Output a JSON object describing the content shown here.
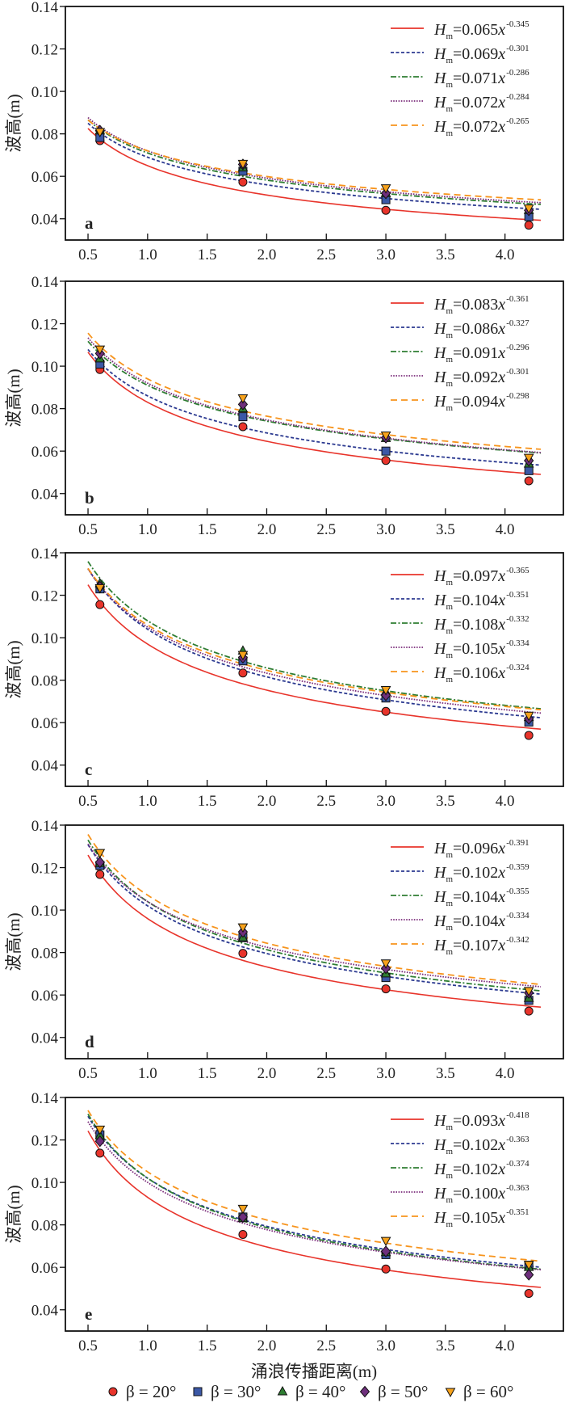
{
  "xlabel": "涌浪传播距离(m)",
  "ylabel": "波高(m)",
  "fit_prefix": "H",
  "fit_subscript": "m",
  "fit_variable": "x",
  "legend": [
    {
      "label": "β = 20°",
      "marker": "circle",
      "color": "#e8342b"
    },
    {
      "label": "β = 30°",
      "marker": "square",
      "color": "#3b58a6"
    },
    {
      "label": "β = 40°",
      "marker": "triangle-up",
      "color": "#2e7d32"
    },
    {
      "label": "β = 50°",
      "marker": "diamond",
      "color": "#6e2f7c"
    },
    {
      "label": "β = 60°",
      "marker": "triangle-down",
      "color": "#f7a21b"
    }
  ],
  "fit_styles": [
    {
      "color": "#e8342b",
      "style": "solid"
    },
    {
      "color": "#2b3990",
      "style": "short-dash"
    },
    {
      "color": "#2e7d32",
      "style": "dash-dot"
    },
    {
      "color": "#7b2d7b",
      "style": "dotted"
    },
    {
      "color": "#f7941d",
      "style": "long-dash"
    }
  ],
  "chart_data": [
    {
      "type": "scatter",
      "panel_label": "a",
      "xlim": [
        0.31,
        4.49
      ],
      "ylim": [
        0.03,
        0.14
      ],
      "xticks": [
        "0.5",
        "1.0",
        "1.5",
        "2.0",
        "2.5",
        "3.0",
        "3.5",
        "4.0"
      ],
      "yticks": [
        "0.04",
        "0.06",
        "0.08",
        "0.10",
        "0.12",
        "0.14"
      ],
      "x": [
        0.6,
        1.8,
        3.0,
        4.2
      ],
      "series": [
        {
          "name": "β = 20°",
          "values": [
            0.0768,
            0.0573,
            0.044,
            0.037
          ]
        },
        {
          "name": "β = 30°",
          "values": [
            0.0783,
            0.0624,
            0.049,
            0.041
          ]
        },
        {
          "name": "β = 40°",
          "values": [
            0.0815,
            0.064,
            0.052,
            0.044
          ]
        },
        {
          "name": "β = 50°",
          "values": [
            0.0815,
            0.0656,
            0.052,
            0.044
          ]
        },
        {
          "name": "β = 60°",
          "values": [
            0.081,
            0.066,
            0.0545,
            0.045
          ]
        }
      ],
      "fits": [
        {
          "coefficient": "0.065",
          "exponent": "-0.345"
        },
        {
          "coefficient": "0.069",
          "exponent": "-0.301"
        },
        {
          "coefficient": "0.071",
          "exponent": "-0.286"
        },
        {
          "coefficient": "0.072",
          "exponent": "-0.284"
        },
        {
          "coefficient": "0.072",
          "exponent": "-0.265"
        }
      ]
    },
    {
      "type": "scatter",
      "panel_label": "b",
      "xlim": [
        0.31,
        4.49
      ],
      "ylim": [
        0.03,
        0.14
      ],
      "xticks": [
        "0.5",
        "1.0",
        "1.5",
        "2.0",
        "2.5",
        "3.0",
        "3.5",
        "4.0"
      ],
      "yticks": [
        "0.04",
        "0.06",
        "0.08",
        "0.10",
        "0.12",
        "0.14"
      ],
      "x": [
        0.6,
        1.8,
        3.0,
        4.2
      ],
      "series": [
        {
          "name": "β = 20°",
          "values": [
            0.0984,
            0.0715,
            0.0556,
            0.046
          ]
        },
        {
          "name": "β = 30°",
          "values": [
            0.101,
            0.0762,
            0.06,
            0.0508
          ]
        },
        {
          "name": "β = 40°",
          "values": [
            0.1035,
            0.08,
            0.066,
            0.054
          ]
        },
        {
          "name": "β = 50°",
          "values": [
            0.106,
            0.082,
            0.0663,
            0.0555
          ]
        },
        {
          "name": "β = 60°",
          "values": [
            0.108,
            0.085,
            0.0675,
            0.057
          ]
        }
      ],
      "fits": [
        {
          "coefficient": "0.083",
          "exponent": "-0.361"
        },
        {
          "coefficient": "0.086",
          "exponent": "-0.327"
        },
        {
          "coefficient": "0.091",
          "exponent": "-0.296"
        },
        {
          "coefficient": "0.092",
          "exponent": "-0.301"
        },
        {
          "coefficient": "0.094",
          "exponent": "-0.298"
        }
      ]
    },
    {
      "type": "scatter",
      "panel_label": "c",
      "xlim": [
        0.31,
        4.49
      ],
      "ylim": [
        0.03,
        0.14
      ],
      "xticks": [
        "0.5",
        "1.0",
        "1.5",
        "2.0",
        "2.5",
        "3.0",
        "3.5",
        "4.0"
      ],
      "yticks": [
        "0.04",
        "0.06",
        "0.08",
        "0.10",
        "0.12",
        "0.14"
      ],
      "x": [
        0.6,
        1.8,
        3.0,
        4.2
      ],
      "series": [
        {
          "name": "β = 20°",
          "values": [
            0.1156,
            0.0834,
            0.0653,
            0.054
          ]
        },
        {
          "name": "β = 30°",
          "values": [
            0.123,
            0.0891,
            0.0716,
            0.0603
          ]
        },
        {
          "name": "β = 40°",
          "values": [
            0.1255,
            0.0938,
            0.0745,
            0.0625
          ]
        },
        {
          "name": "β = 50°",
          "values": [
            0.124,
            0.0906,
            0.0729,
            0.0618
          ]
        },
        {
          "name": "β = 60°",
          "values": [
            0.1235,
            0.092,
            0.0755,
            0.0634
          ]
        }
      ],
      "fits": [
        {
          "coefficient": "0.097",
          "exponent": "-0.365"
        },
        {
          "coefficient": "0.104",
          "exponent": "-0.351"
        },
        {
          "coefficient": "0.108",
          "exponent": "-0.332"
        },
        {
          "coefficient": "0.105",
          "exponent": "-0.334"
        },
        {
          "coefficient": "0.106",
          "exponent": "-0.324"
        }
      ]
    },
    {
      "type": "scatter",
      "panel_label": "d",
      "xlim": [
        0.31,
        4.49
      ],
      "ylim": [
        0.03,
        0.14
      ],
      "xticks": [
        "0.5",
        "1.0",
        "1.5",
        "2.0",
        "2.5",
        "3.0",
        "3.5",
        "4.0"
      ],
      "yticks": [
        "0.04",
        "0.06",
        "0.08",
        "0.10",
        "0.12",
        "0.14"
      ],
      "x": [
        0.6,
        1.8,
        3.0,
        4.2
      ],
      "series": [
        {
          "name": "β = 20°",
          "values": [
            0.1168,
            0.0796,
            0.0629,
            0.0524
          ]
        },
        {
          "name": "β = 30°",
          "values": [
            0.121,
            0.087,
            0.0682,
            0.0575
          ]
        },
        {
          "name": "β = 40°",
          "values": [
            0.122,
            0.087,
            0.07,
            0.0585
          ]
        },
        {
          "name": "β = 50°",
          "values": [
            0.1225,
            0.0897,
            0.0726,
            0.061
          ]
        },
        {
          "name": "β = 60°",
          "values": [
            0.127,
            0.092,
            0.075,
            0.062
          ]
        }
      ],
      "fits": [
        {
          "coefficient": "0.096",
          "exponent": "-0.391"
        },
        {
          "coefficient": "0.102",
          "exponent": "-0.359"
        },
        {
          "coefficient": "0.104",
          "exponent": "-0.355"
        },
        {
          "coefficient": "0.104",
          "exponent": "-0.334"
        },
        {
          "coefficient": "0.107",
          "exponent": "-0.342"
        }
      ]
    },
    {
      "type": "scatter",
      "panel_label": "e",
      "xlim": [
        0.31,
        4.49
      ],
      "ylim": [
        0.03,
        0.14
      ],
      "xticks": [
        "0.5",
        "1.0",
        "1.5",
        "2.0",
        "2.5",
        "3.0",
        "3.5",
        "4.0"
      ],
      "yticks": [
        "0.04",
        "0.06",
        "0.08",
        "0.10",
        "0.12",
        "0.14"
      ],
      "x": [
        0.6,
        1.8,
        3.0,
        4.2
      ],
      "series": [
        {
          "name": "β = 20°",
          "values": [
            0.1138,
            0.0755,
            0.0592,
            0.0477
          ]
        },
        {
          "name": "β = 30°",
          "values": [
            0.1224,
            0.0837,
            0.066,
            0.061
          ]
        },
        {
          "name": "β = 40°",
          "values": [
            0.122,
            0.083,
            0.067,
            0.06
          ]
        },
        {
          "name": "β = 50°",
          "values": [
            0.1194,
            0.0837,
            0.0675,
            0.0565
          ]
        },
        {
          "name": "β = 60°",
          "values": [
            0.125,
            0.0877,
            0.0726,
            0.0613
          ]
        }
      ],
      "fits": [
        {
          "coefficient": "0.093",
          "exponent": "-0.418"
        },
        {
          "coefficient": "0.102",
          "exponent": "-0.363"
        },
        {
          "coefficient": "0.102",
          "exponent": "-0.374"
        },
        {
          "coefficient": "0.100",
          "exponent": "-0.363"
        },
        {
          "coefficient": "0.105",
          "exponent": "-0.351"
        }
      ]
    }
  ]
}
